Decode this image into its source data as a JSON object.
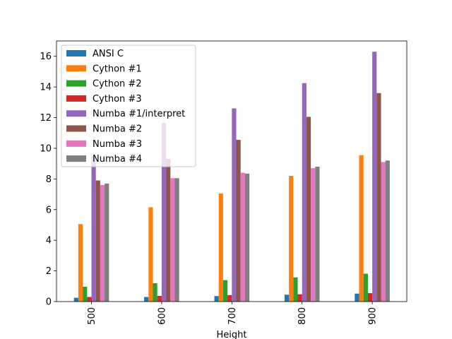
{
  "chart_data": {
    "type": "bar",
    "title": "",
    "xlabel": "Height",
    "ylabel": "",
    "categories": [
      "500",
      "600",
      "700",
      "800",
      "900"
    ],
    "ylim": [
      0,
      17
    ],
    "yticks": [
      0,
      2,
      4,
      6,
      8,
      10,
      12,
      14,
      16
    ],
    "grid": false,
    "legend_position": "upper-left",
    "series": [
      {
        "name": "ANSI C",
        "color": "#1f77b4",
        "values": [
          0.25,
          0.3,
          0.36,
          0.45,
          0.52
        ]
      },
      {
        "name": "Cython #1",
        "color": "#ff7f0e",
        "values": [
          5.05,
          6.15,
          7.05,
          8.2,
          9.55
        ]
      },
      {
        "name": "Cython #2",
        "color": "#2ca02c",
        "values": [
          0.97,
          1.2,
          1.4,
          1.58,
          1.82
        ]
      },
      {
        "name": "Cython #3",
        "color": "#d62728",
        "values": [
          0.3,
          0.37,
          0.42,
          0.48,
          0.55
        ]
      },
      {
        "name": "Numba #1/interpret",
        "color": "#9467bd",
        "values": [
          9.5,
          11.65,
          12.6,
          14.25,
          16.3
        ]
      },
      {
        "name": "Numba #2",
        "color": "#8c564b",
        "values": [
          7.9,
          9.3,
          10.55,
          12.05,
          13.6
        ]
      },
      {
        "name": "Numba #3",
        "color": "#e377c2",
        "values": [
          7.6,
          8.05,
          8.4,
          8.7,
          9.1
        ]
      },
      {
        "name": "Numba #4",
        "color": "#7f7f7f",
        "values": [
          7.7,
          8.05,
          8.35,
          8.8,
          9.2
        ]
      }
    ]
  }
}
